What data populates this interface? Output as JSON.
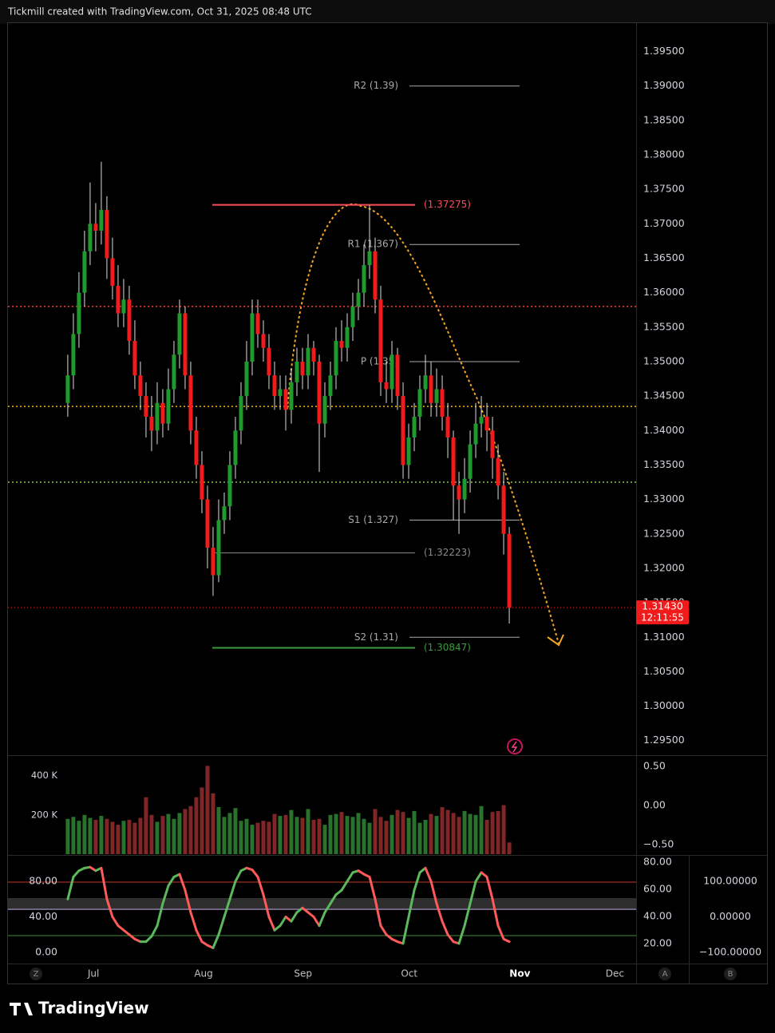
{
  "header": "Tickmill created with TradingView.com, Oct 31, 2025 08:48 UTC",
  "footer_logo": "TradingView",
  "chart_data": {
    "type": "candlestick",
    "candles": [
      [
        1.344,
        1.351,
        1.342,
        1.348
      ],
      [
        1.348,
        1.357,
        1.346,
        1.354
      ],
      [
        1.354,
        1.363,
        1.352,
        1.36
      ],
      [
        1.36,
        1.369,
        1.358,
        1.366
      ],
      [
        1.366,
        1.376,
        1.364,
        1.37
      ],
      [
        1.37,
        1.373,
        1.366,
        1.369
      ],
      [
        1.369,
        1.379,
        1.367,
        1.372
      ],
      [
        1.372,
        1.374,
        1.362,
        1.365
      ],
      [
        1.365,
        1.368,
        1.359,
        1.361
      ],
      [
        1.361,
        1.364,
        1.355,
        1.357
      ],
      [
        1.357,
        1.362,
        1.355,
        1.359
      ],
      [
        1.359,
        1.361,
        1.351,
        1.353
      ],
      [
        1.353,
        1.356,
        1.346,
        1.348
      ],
      [
        1.348,
        1.35,
        1.343,
        1.345
      ],
      [
        1.345,
        1.347,
        1.339,
        1.342
      ],
      [
        1.342,
        1.345,
        1.337,
        1.34
      ],
      [
        1.34,
        1.347,
        1.338,
        1.344
      ],
      [
        1.344,
        1.346,
        1.339,
        1.341
      ],
      [
        1.341,
        1.349,
        1.34,
        1.346
      ],
      [
        1.346,
        1.353,
        1.344,
        1.351
      ],
      [
        1.351,
        1.359,
        1.349,
        1.357
      ],
      [
        1.357,
        1.358,
        1.346,
        1.348
      ],
      [
        1.348,
        1.35,
        1.338,
        1.34
      ],
      [
        1.34,
        1.342,
        1.333,
        1.335
      ],
      [
        1.335,
        1.337,
        1.328,
        1.33
      ],
      [
        1.33,
        1.332,
        1.32,
        1.323
      ],
      [
        1.323,
        1.326,
        1.316,
        1.319
      ],
      [
        1.319,
        1.33,
        1.318,
        1.327
      ],
      [
        1.327,
        1.331,
        1.325,
        1.329
      ],
      [
        1.329,
        1.337,
        1.327,
        1.335
      ],
      [
        1.335,
        1.342,
        1.333,
        1.34
      ],
      [
        1.34,
        1.347,
        1.338,
        1.345
      ],
      [
        1.345,
        1.353,
        1.343,
        1.35
      ],
      [
        1.35,
        1.359,
        1.348,
        1.357
      ],
      [
        1.357,
        1.359,
        1.352,
        1.354
      ],
      [
        1.354,
        1.356,
        1.35,
        1.352
      ],
      [
        1.352,
        1.354,
        1.346,
        1.348
      ],
      [
        1.348,
        1.35,
        1.343,
        1.345
      ],
      [
        1.345,
        1.348,
        1.343,
        1.346
      ],
      [
        1.346,
        1.348,
        1.34,
        1.343
      ],
      [
        1.343,
        1.349,
        1.341,
        1.347
      ],
      [
        1.347,
        1.352,
        1.345,
        1.35
      ],
      [
        1.35,
        1.352,
        1.346,
        1.348
      ],
      [
        1.348,
        1.354,
        1.346,
        1.352
      ],
      [
        1.352,
        1.353,
        1.348,
        1.35
      ],
      [
        1.35,
        1.351,
        1.334,
        1.341
      ],
      [
        1.341,
        1.347,
        1.339,
        1.345
      ],
      [
        1.345,
        1.35,
        1.343,
        1.348
      ],
      [
        1.348,
        1.355,
        1.346,
        1.353
      ],
      [
        1.353,
        1.356,
        1.35,
        1.352
      ],
      [
        1.352,
        1.357,
        1.35,
        1.355
      ],
      [
        1.355,
        1.36,
        1.353,
        1.358
      ],
      [
        1.358,
        1.362,
        1.356,
        1.36
      ],
      [
        1.36,
        1.367,
        1.358,
        1.364
      ],
      [
        1.364,
        1.3727,
        1.362,
        1.366
      ],
      [
        1.366,
        1.368,
        1.357,
        1.359
      ],
      [
        1.359,
        1.361,
        1.345,
        1.347
      ],
      [
        1.347,
        1.35,
        1.344,
        1.346
      ],
      [
        1.346,
        1.353,
        1.344,
        1.351
      ],
      [
        1.351,
        1.352,
        1.343,
        1.345
      ],
      [
        1.345,
        1.347,
        1.333,
        1.335
      ],
      [
        1.335,
        1.341,
        1.333,
        1.339
      ],
      [
        1.339,
        1.344,
        1.337,
        1.342
      ],
      [
        1.342,
        1.348,
        1.34,
        1.346
      ],
      [
        1.346,
        1.351,
        1.344,
        1.348
      ],
      [
        1.348,
        1.35,
        1.342,
        1.344
      ],
      [
        1.344,
        1.349,
        1.342,
        1.346
      ],
      [
        1.346,
        1.348,
        1.34,
        1.342
      ],
      [
        1.342,
        1.344,
        1.336,
        1.339
      ],
      [
        1.339,
        1.34,
        1.327,
        1.332
      ],
      [
        1.332,
        1.334,
        1.325,
        1.33
      ],
      [
        1.33,
        1.336,
        1.328,
        1.333
      ],
      [
        1.333,
        1.34,
        1.331,
        1.338
      ],
      [
        1.338,
        1.344,
        1.336,
        1.341
      ],
      [
        1.341,
        1.345,
        1.339,
        1.342
      ],
      [
        1.342,
        1.344,
        1.337,
        1.34
      ],
      [
        1.34,
        1.342,
        1.333,
        1.336
      ],
      [
        1.336,
        1.338,
        1.33,
        1.332
      ],
      [
        1.332,
        1.334,
        1.322,
        1.325
      ],
      [
        1.325,
        1.326,
        1.312,
        1.3143
      ]
    ],
    "up_color": "#1f9a2e",
    "down_color": "#f21b1b",
    "xlim": [
      -10.7,
      101.7
    ],
    "xticks": [
      {
        "value": 4.6,
        "label": "Jul"
      },
      {
        "value": 24.3,
        "label": "Aug"
      },
      {
        "value": 42.1,
        "label": "Sep"
      },
      {
        "value": 61.1,
        "label": "Oct"
      },
      {
        "value": 80.9,
        "label": "Nov"
      },
      {
        "value": 97.9,
        "label": "Dec"
      }
    ],
    "ylim": [
      1.293,
      1.399
    ],
    "yticks": [
      {
        "value": 1.395,
        "label": "1.39500"
      },
      {
        "value": 1.39,
        "label": "1.39000"
      },
      {
        "value": 1.385,
        "label": "1.38500"
      },
      {
        "value": 1.38,
        "label": "1.38000"
      },
      {
        "value": 1.375,
        "label": "1.37500"
      },
      {
        "value": 1.37,
        "label": "1.37000"
      },
      {
        "value": 1.365,
        "label": "1.36500"
      },
      {
        "value": 1.36,
        "label": "1.36000"
      },
      {
        "value": 1.355,
        "label": "1.35500"
      },
      {
        "value": 1.35,
        "label": "1.35000"
      },
      {
        "value": 1.345,
        "label": "1.34500"
      },
      {
        "value": 1.34,
        "label": "1.34000"
      },
      {
        "value": 1.335,
        "label": "1.33500"
      },
      {
        "value": 1.33,
        "label": "1.33000"
      },
      {
        "value": 1.325,
        "label": "1.32500"
      },
      {
        "value": 1.32,
        "label": "1.32000"
      },
      {
        "value": 1.315,
        "label": "1.31500"
      },
      {
        "value": 1.31,
        "label": "1.31000"
      },
      {
        "value": 1.305,
        "label": "1.30500"
      },
      {
        "value": 1.3,
        "label": "1.30000"
      },
      {
        "value": 1.295,
        "label": "1.29500"
      }
    ],
    "last_price": {
      "value": 1.3143,
      "label": "1.31430"
    },
    "countdown": "12:11:55",
    "pivots": [
      {
        "label": "R2 (1.39)",
        "value": 1.39
      },
      {
        "label": "R1 (1.367)",
        "value": 1.367
      },
      {
        "label": "P (1.35)",
        "value": 1.35
      },
      {
        "label": "S1 (1.327)",
        "value": 1.327
      },
      {
        "label": "S2 (1.31)",
        "value": 1.31
      }
    ],
    "levels": [
      {
        "label": "(1.37275)",
        "value": 1.37275,
        "color": "#ff4d57"
      },
      {
        "label": "(1.32223)",
        "value": 1.32223,
        "color": "#8a8a8a"
      },
      {
        "label": "(1.30847)",
        "value": 1.30847,
        "color": "#3c9a3c"
      }
    ],
    "dotted_levels": [
      {
        "value": 1.358,
        "color": "#ff3b30"
      },
      {
        "value": 1.3435,
        "color": "#f5b800"
      },
      {
        "value": 1.3325,
        "color": "#8bc34a"
      }
    ],
    "volume": {
      "type": "bar",
      "values": [
        180,
        190,
        170,
        200,
        185,
        175,
        195,
        180,
        165,
        150,
        170,
        175,
        160,
        185,
        290,
        200,
        165,
        195,
        205,
        180,
        210,
        230,
        245,
        290,
        340,
        450,
        310,
        240,
        190,
        210,
        235,
        170,
        180,
        150,
        160,
        170,
        165,
        205,
        195,
        200,
        225,
        190,
        185,
        230,
        175,
        180,
        150,
        200,
        205,
        215,
        195,
        190,
        210,
        180,
        160,
        230,
        190,
        170,
        200,
        225,
        215,
        185,
        220,
        160,
        175,
        205,
        195,
        240,
        225,
        210,
        190,
        220,
        205,
        200,
        245,
        175,
        215,
        220,
        250,
        60
      ],
      "ylim": [
        0,
        480
      ],
      "yticks": [
        {
          "value": 400,
          "label": "400 K"
        },
        {
          "value": 200,
          "label": "200 K"
        }
      ],
      "y2lim": [
        -0.62,
        0.58
      ],
      "y2ticks": [
        {
          "value": 0.5,
          "label": "0.50"
        },
        {
          "value": 0,
          "label": "0.00"
        },
        {
          "value": -0.5,
          "label": "−0.50"
        }
      ]
    },
    "oscillator": {
      "type": "line",
      "values": [
        60,
        85,
        92,
        95,
        96,
        92,
        95,
        60,
        40,
        30,
        25,
        20,
        15,
        12,
        12,
        18,
        30,
        55,
        75,
        85,
        88,
        70,
        45,
        25,
        12,
        8,
        5,
        20,
        40,
        60,
        80,
        92,
        95,
        93,
        85,
        65,
        40,
        25,
        30,
        40,
        35,
        45,
        50,
        45,
        40,
        30,
        45,
        55,
        65,
        70,
        80,
        90,
        92,
        88,
        85,
        60,
        30,
        20,
        15,
        12,
        10,
        40,
        70,
        90,
        95,
        80,
        55,
        35,
        20,
        12,
        10,
        30,
        55,
        80,
        90,
        85,
        60,
        30,
        15,
        12
      ],
      "up_color": "#5cb85c",
      "down_color": "#ff5a5a",
      "ylim": [
        -12.6,
        108.8
      ],
      "yticks": [
        {
          "value": 80,
          "label": "80.00"
        },
        {
          "value": 40,
          "label": "40.00"
        },
        {
          "value": 0,
          "label": "0.00"
        }
      ],
      "y2lim": [
        5.3,
        84.7
      ],
      "y2ticks": [
        {
          "value": 80,
          "label": "80.00"
        },
        {
          "value": 60,
          "label": "60.00"
        },
        {
          "value": 40,
          "label": "40.00"
        },
        {
          "value": 20,
          "label": "20.00"
        }
      ],
      "y3lim": [
        -131.5,
        171.9
      ],
      "y3ticks": [
        {
          "value": 100,
          "label": "100.00000"
        },
        {
          "value": 0,
          "label": "0.00000"
        },
        {
          "value": -100,
          "label": "−100.00000"
        }
      ]
    },
    "axis_buttons": [
      "Z",
      "A",
      "B"
    ]
  }
}
